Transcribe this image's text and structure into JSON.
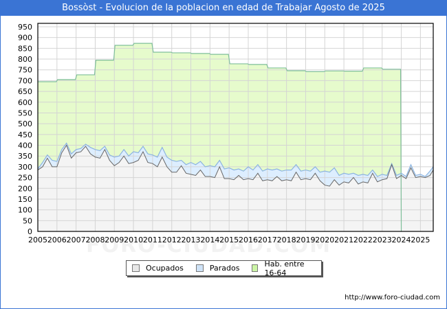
{
  "title": "Bossòst - Evolucion de la poblacion en edad de Trabajar Agosto de 2025",
  "legend": [
    {
      "label": "Ocupados",
      "color": "#e8e8e8",
      "key": "ocupados"
    },
    {
      "label": "Parados",
      "color": "#cfe3f7",
      "key": "parados"
    },
    {
      "label": "Hab. entre 16-64",
      "color": "#ccf5a6",
      "key": "hab"
    }
  ],
  "source": "http://www.foro-ciudad.com",
  "watermark": "FORO-CIUDAD.COM",
  "colors": {
    "title_bg": "#3a74d4",
    "hab_fill": "#e6fbcc",
    "hab_line": "#7fbf9a",
    "parados_fill": "#ddeeff",
    "parados_line": "#8cb4e0",
    "ocupados_fill": "#f4f4f4",
    "ocupados_line": "#666666",
    "grid": "#d4d4d4"
  },
  "chart_data": {
    "type": "area",
    "title": "Bossòst - Evolucion de la poblacion en edad de Trabajar Agosto de 2025",
    "xlabel": "",
    "ylabel": "",
    "ylim": [
      0,
      950
    ],
    "xlim": [
      2005,
      2025.67
    ],
    "y_ticks": [
      0,
      50,
      100,
      150,
      200,
      250,
      300,
      350,
      400,
      450,
      500,
      550,
      600,
      650,
      700,
      750,
      800,
      850,
      900,
      950
    ],
    "x_ticks": [
      2005,
      2006,
      2007,
      2008,
      2009,
      2010,
      2011,
      2012,
      2013,
      2014,
      2015,
      2016,
      2017,
      2018,
      2019,
      2020,
      2021,
      2022,
      2023,
      2024,
      2025
    ],
    "grid": true,
    "legend_position": "bottom",
    "series": [
      {
        "name": "Hab. entre 16-64",
        "type": "step",
        "x": [
          2005,
          2006,
          2007,
          2008,
          2009,
          2010,
          2011,
          2012,
          2013,
          2014,
          2015,
          2016,
          2017,
          2018,
          2019,
          2020,
          2021,
          2022,
          2023
        ],
        "values": [
          695,
          705,
          727,
          795,
          864,
          873,
          832,
          829,
          826,
          822,
          778,
          775,
          759,
          746,
          742,
          745,
          744,
          759,
          753
        ],
        "end": 2024
      },
      {
        "name": "Parados",
        "note": "plotted as Ocupados + Parados (upper envelope)",
        "x": [
          2005.0,
          2005.25,
          2005.5,
          2005.75,
          2006.0,
          2006.25,
          2006.5,
          2006.75,
          2007.0,
          2007.25,
          2007.5,
          2007.75,
          2008.0,
          2008.25,
          2008.5,
          2008.75,
          2009.0,
          2009.25,
          2009.5,
          2009.75,
          2010.0,
          2010.25,
          2010.5,
          2010.75,
          2011.0,
          2011.25,
          2011.5,
          2011.75,
          2012.0,
          2012.25,
          2012.5,
          2012.75,
          2013.0,
          2013.25,
          2013.5,
          2013.75,
          2014.0,
          2014.25,
          2014.5,
          2014.75,
          2015.0,
          2015.25,
          2015.5,
          2015.75,
          2016.0,
          2016.25,
          2016.5,
          2016.75,
          2017.0,
          2017.25,
          2017.5,
          2017.75,
          2018.0,
          2018.25,
          2018.5,
          2018.75,
          2019.0,
          2019.25,
          2019.5,
          2019.75,
          2020.0,
          2020.25,
          2020.5,
          2020.75,
          2021.0,
          2021.25,
          2021.5,
          2021.75,
          2022.0,
          2022.25,
          2022.5,
          2022.75,
          2023.0,
          2023.25,
          2023.5,
          2023.75,
          2024.0,
          2024.25,
          2024.5,
          2024.75,
          2025.0,
          2025.25,
          2025.5,
          2025.67
        ],
        "values": [
          290,
          320,
          355,
          330,
          325,
          380,
          410,
          360,
          380,
          385,
          405,
          390,
          380,
          375,
          395,
          355,
          345,
          350,
          380,
          350,
          370,
          365,
          395,
          360,
          355,
          345,
          390,
          345,
          330,
          325,
          330,
          310,
          320,
          310,
          325,
          300,
          305,
          300,
          330,
          290,
          295,
          285,
          290,
          280,
          300,
          285,
          310,
          280,
          290,
          285,
          290,
          280,
          285,
          285,
          310,
          280,
          285,
          280,
          300,
          275,
          280,
          275,
          295,
          260,
          270,
          265,
          270,
          260,
          265,
          260,
          285,
          255,
          265,
          260,
          315,
          260,
          270,
          255,
          310,
          260,
          265,
          255,
          280,
          300
        ]
      },
      {
        "name": "Ocupados",
        "x": [
          2005.0,
          2005.25,
          2005.5,
          2005.75,
          2006.0,
          2006.25,
          2006.5,
          2006.75,
          2007.0,
          2007.25,
          2007.5,
          2007.75,
          2008.0,
          2008.25,
          2008.5,
          2008.75,
          2009.0,
          2009.25,
          2009.5,
          2009.75,
          2010.0,
          2010.25,
          2010.5,
          2010.75,
          2011.0,
          2011.25,
          2011.5,
          2011.75,
          2012.0,
          2012.25,
          2012.5,
          2012.75,
          2013.0,
          2013.25,
          2013.5,
          2013.75,
          2014.0,
          2014.25,
          2014.5,
          2014.75,
          2015.0,
          2015.25,
          2015.5,
          2015.75,
          2016.0,
          2016.25,
          2016.5,
          2016.75,
          2017.0,
          2017.25,
          2017.5,
          2017.75,
          2018.0,
          2018.25,
          2018.5,
          2018.75,
          2019.0,
          2019.25,
          2019.5,
          2019.75,
          2020.0,
          2020.25,
          2020.5,
          2020.75,
          2021.0,
          2021.25,
          2021.5,
          2021.75,
          2022.0,
          2022.25,
          2022.5,
          2022.75,
          2023.0,
          2023.25,
          2023.5,
          2023.75,
          2024.0,
          2024.25,
          2024.5,
          2024.75,
          2025.0,
          2025.25,
          2025.5,
          2025.67
        ],
        "values": [
          285,
          300,
          340,
          300,
          300,
          365,
          400,
          340,
          365,
          370,
          395,
          360,
          345,
          340,
          380,
          330,
          305,
          320,
          350,
          315,
          320,
          330,
          370,
          320,
          315,
          300,
          345,
          300,
          275,
          275,
          305,
          270,
          265,
          260,
          285,
          255,
          255,
          250,
          300,
          245,
          245,
          240,
          260,
          240,
          245,
          240,
          270,
          235,
          240,
          235,
          255,
          235,
          240,
          235,
          275,
          240,
          245,
          240,
          270,
          235,
          215,
          210,
          240,
          215,
          230,
          225,
          250,
          220,
          230,
          225,
          270,
          230,
          240,
          245,
          310,
          245,
          260,
          245,
          295,
          250,
          255,
          250,
          260,
          285
        ]
      }
    ]
  }
}
